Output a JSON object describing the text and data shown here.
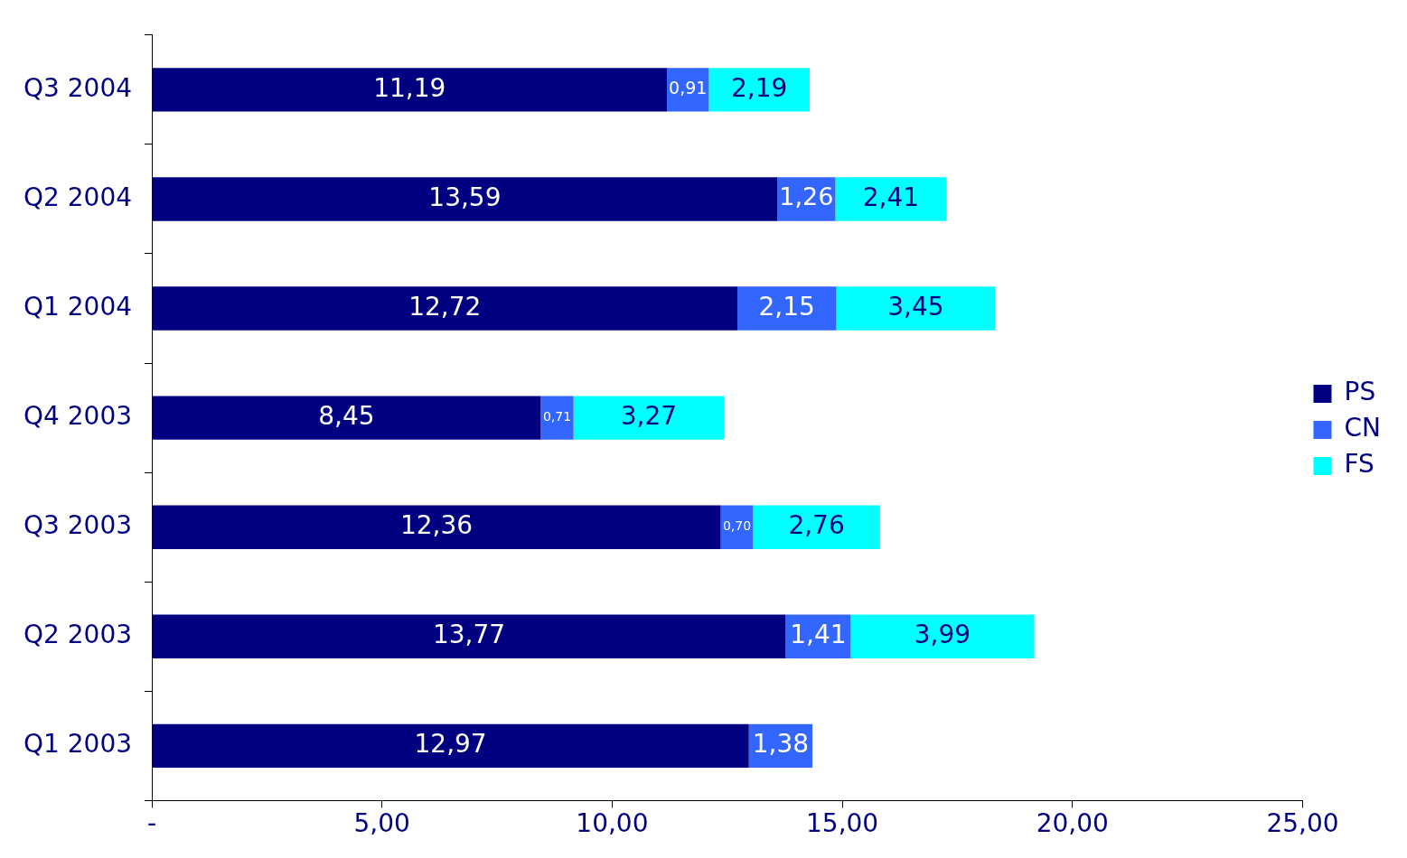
{
  "chart_data": {
    "type": "bar",
    "orientation": "horizontal",
    "stacked": true,
    "categories": [
      "Q3 2004",
      "Q2 2004",
      "Q1 2004",
      "Q4 2003",
      "Q3 2003",
      "Q2 2003",
      "Q1 2003"
    ],
    "series": [
      {
        "name": "PS",
        "color": "#000080",
        "values": [
          11.19,
          13.59,
          12.72,
          8.45,
          12.36,
          13.77,
          12.97
        ],
        "value_labels": [
          "11,19",
          "13,59",
          "12,72",
          "8,45",
          "12,36",
          "13,77",
          "12,97"
        ]
      },
      {
        "name": "CN",
        "color": "#3366ff",
        "values": [
          0.91,
          1.26,
          2.15,
          0.71,
          0.7,
          1.41,
          1.38
        ],
        "value_labels": [
          "0,91",
          "1,26",
          "2,15",
          "0,71",
          "0,70",
          "1,41",
          "1,38"
        ]
      },
      {
        "name": "FS",
        "color": "#00ffff",
        "values": [
          2.19,
          2.41,
          3.45,
          3.27,
          2.76,
          3.99,
          null
        ],
        "value_labels": [
          "2,19",
          "2,41",
          "3,45",
          "3,27",
          "2,76",
          "3,99",
          null
        ]
      }
    ],
    "xlim": [
      0,
      25
    ],
    "xticks": [
      {
        "value": 0,
        "label": "-"
      },
      {
        "value": 5,
        "label": "5,00"
      },
      {
        "value": 10,
        "label": "10,00"
      },
      {
        "value": 15,
        "label": "15,00"
      },
      {
        "value": 20,
        "label": "20,00"
      },
      {
        "value": 25,
        "label": "25,00"
      }
    ],
    "grid": false,
    "legend": "right"
  }
}
